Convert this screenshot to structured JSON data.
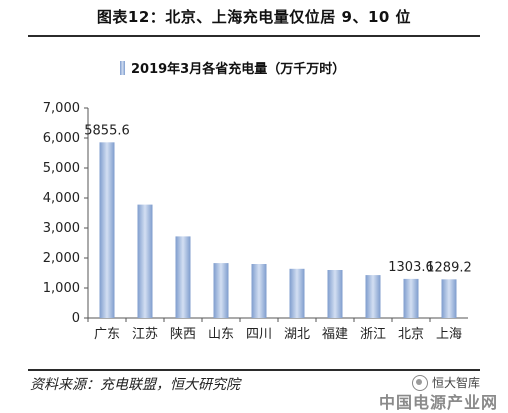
{
  "page": {
    "title": "图表12：北京、上海充电量仅位居 9、10 位",
    "source": "资料来源：充电联盟，恒大研究院",
    "watermark_logo": "恒大智库",
    "watermark_site": "中国电源产业网"
  },
  "chart_data": {
    "type": "bar",
    "series": [
      {
        "name": "2019年3月各省充电量（万千万时）",
        "values": [
          5855.6,
          3780,
          2720,
          1830,
          1800,
          1640,
          1600,
          1430,
          1303.6,
          1289.2
        ]
      }
    ],
    "categories": [
      "广东",
      "江苏",
      "陕西",
      "山东",
      "四川",
      "湖北",
      "福建",
      "浙江",
      "北京",
      "上海"
    ],
    "data_labels": [
      {
        "index": 0,
        "text": "5855.6"
      },
      {
        "index": 8,
        "text": "1303.6"
      },
      {
        "index": 9,
        "text": "1289.2"
      }
    ],
    "ylim": [
      0,
      7000
    ],
    "yticks": [
      "0",
      "1,000",
      "2,000",
      "3,000",
      "4,000",
      "5,000",
      "6,000",
      "7,000"
    ],
    "ytick_values": [
      0,
      1000,
      2000,
      3000,
      4000,
      5000,
      6000,
      7000
    ],
    "grid": false,
    "legend_position": "top",
    "colors": {
      "bar_edge": "#7e9ccd",
      "bar_center": "#d3dff2",
      "axis": "#555555",
      "rule": "#2b2b2b"
    }
  }
}
